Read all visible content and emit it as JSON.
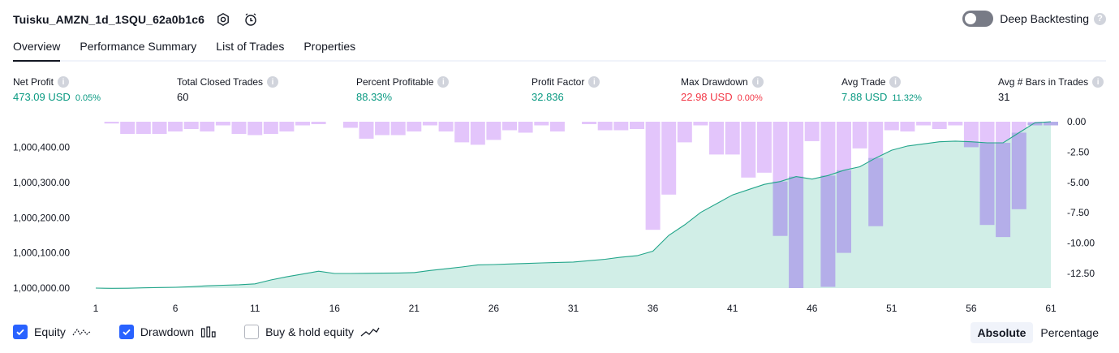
{
  "header": {
    "title": "Tuisku_AMZN_1d_1SQU_62a0b1c6",
    "deep_backtesting_label": "Deep Backtesting",
    "deep_backtesting_enabled": false
  },
  "tabs": [
    {
      "label": "Overview",
      "active": true
    },
    {
      "label": "Performance Summary",
      "active": false
    },
    {
      "label": "List of Trades",
      "active": false
    },
    {
      "label": "Properties",
      "active": false
    }
  ],
  "metrics": [
    {
      "label": "Net Profit",
      "value": "473.09 USD",
      "pct": "0.05%",
      "color": "green"
    },
    {
      "label": "Total Closed Trades",
      "value": "60",
      "pct": "",
      "color": "neutral"
    },
    {
      "label": "Percent Profitable",
      "value": "88.33%",
      "pct": "",
      "color": "green"
    },
    {
      "label": "Profit Factor",
      "value": "32.836",
      "pct": "",
      "color": "green"
    },
    {
      "label": "Max Drawdown",
      "value": "22.98 USD",
      "pct": "0.00%",
      "color": "red"
    },
    {
      "label": "Avg Trade",
      "value": "7.88 USD",
      "pct": "11.32%",
      "color": "green"
    },
    {
      "label": "Avg # Bars in Trades",
      "value": "31",
      "pct": "",
      "color": "neutral"
    }
  ],
  "chart_data": {
    "type": "area",
    "x": [
      1,
      2,
      3,
      4,
      5,
      6,
      7,
      8,
      9,
      10,
      11,
      12,
      13,
      14,
      15,
      16,
      17,
      18,
      19,
      20,
      21,
      22,
      23,
      24,
      25,
      26,
      27,
      28,
      29,
      30,
      31,
      32,
      33,
      34,
      35,
      36,
      37,
      38,
      39,
      40,
      41,
      42,
      43,
      44,
      45,
      46,
      47,
      48,
      49,
      50,
      51,
      52,
      53,
      54,
      55,
      56,
      57,
      58,
      59,
      60,
      61
    ],
    "x_ticks": [
      "1",
      "6",
      "11",
      "16",
      "21",
      "26",
      "31",
      "36",
      "41",
      "46",
      "51",
      "56",
      "61"
    ],
    "equity": [
      1000000.0,
      999999.3,
      999999.6,
      1000000.8,
      1000001.6,
      1000002.4,
      1000004.0,
      1000006.5,
      1000008.0,
      1000009.5,
      1000012.0,
      1000023.0,
      1000032.0,
      1000040.0,
      1000048.0,
      1000041.5,
      1000041.5,
      1000042.0,
      1000042.5,
      1000043.0,
      1000044.0,
      1000050.0,
      1000055.0,
      1000060.0,
      1000066.0,
      1000067.0,
      1000068.5,
      1000070.0,
      1000071.5,
      1000073.0,
      1000074.0,
      1000078.0,
      1000082.0,
      1000088.0,
      1000092.0,
      1000105.0,
      1000150.0,
      1000180.0,
      1000215.0,
      1000240.0,
      1000265.0,
      1000280.0,
      1000295.0,
      1000303.0,
      1000317.0,
      1000310.0,
      1000320.0,
      1000335.0,
      1000345.0,
      1000370.0,
      1000392.0,
      1000404.0,
      1000410.0,
      1000416.0,
      1000418.0,
      1000416.0,
      1000413.0,
      1000413.0,
      1000442.0,
      1000470.0,
      1000473.09
    ],
    "drawdown": [
      0.0,
      -0.15,
      -1.0,
      -1.0,
      -1.0,
      -0.8,
      -0.6,
      -0.8,
      -0.3,
      -1.0,
      -1.1,
      -1.0,
      -0.8,
      -0.3,
      -0.2,
      0.0,
      -0.5,
      -1.4,
      -1.1,
      -1.1,
      -0.8,
      -0.3,
      -0.8,
      -1.7,
      -1.9,
      -1.5,
      -0.7,
      -0.9,
      -0.3,
      -0.8,
      0.0,
      -0.2,
      -0.7,
      -0.7,
      -0.6,
      -8.9,
      -6.0,
      -1.7,
      -0.3,
      -2.7,
      -2.7,
      -4.6,
      -4.2,
      -9.4,
      -13.7,
      -1.6,
      -13.6,
      -10.8,
      -2.2,
      -8.6,
      -0.7,
      -0.8,
      -0.3,
      -0.6,
      -0.3,
      -2.1,
      -8.5,
      -9.5,
      -7.2,
      -0.3,
      -0.3
    ],
    "left_axis": {
      "ticks": [
        1000000.0,
        1000100.0,
        1000200.0,
        1000300.0,
        1000400.0
      ],
      "labels": [
        "1,000,000.00",
        "1,000,100.00",
        "1,000,200.00",
        "1,000,300.00",
        "1,000,400.00"
      ],
      "range": [
        1000000.0,
        1000473.09
      ]
    },
    "right_axis": {
      "ticks": [
        0.0,
        -2.5,
        -5.0,
        -7.5,
        -10.0,
        -12.5
      ],
      "labels": [
        "0.00",
        "-2.50",
        "-5.00",
        "-7.50",
        "-10.00",
        "-12.50"
      ],
      "range": [
        0.0,
        -13.7
      ]
    },
    "colors": {
      "equity_line": "#22a58a",
      "equity_fill": "#c9ebe3",
      "drawdown_bar": "#e3c5fb",
      "drawdown_bar_overlap": "#b4aee9"
    }
  },
  "legend": {
    "equity_label": "Equity",
    "equity_checked": true,
    "drawdown_label": "Drawdown",
    "drawdown_checked": true,
    "buyhold_label": "Buy & hold equity",
    "buyhold_checked": false
  },
  "mode": {
    "absolute_label": "Absolute",
    "percentage_label": "Percentage",
    "active": "Absolute"
  }
}
